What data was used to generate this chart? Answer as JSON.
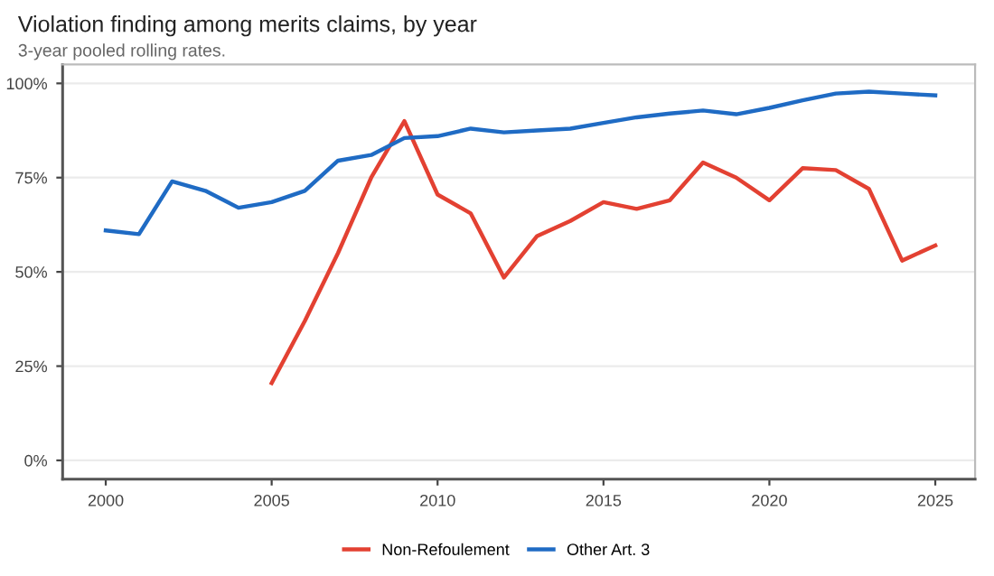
{
  "chart_data": {
    "type": "line",
    "title": "Violation finding among merits claims, by year",
    "subtitle": "3-year pooled rolling rates.",
    "x": [
      2000,
      2001,
      2002,
      2003,
      2004,
      2005,
      2006,
      2007,
      2008,
      2009,
      2010,
      2011,
      2012,
      2013,
      2014,
      2015,
      2016,
      2017,
      2018,
      2019,
      2020,
      2021,
      2022,
      2023,
      2024,
      2025
    ],
    "series": [
      {
        "name": "Non-Refoulement",
        "color": "#e34132",
        "values": [
          null,
          null,
          null,
          null,
          null,
          20.5,
          37,
          55,
          75,
          90,
          70.5,
          65.5,
          48.5,
          59.5,
          63.5,
          68.5,
          66.7,
          69,
          79,
          75,
          69,
          77.5,
          77,
          72,
          53,
          57
        ]
      },
      {
        "name": "Other Art. 3",
        "color": "#1f6bc4",
        "values": [
          61,
          60,
          74,
          71.5,
          67,
          68.5,
          71.5,
          79.5,
          81,
          85.5,
          86,
          88,
          87,
          87.5,
          88,
          89.5,
          91,
          92,
          92.8,
          91.8,
          93.5,
          95.5,
          97.3,
          97.8,
          97.3,
          96.8
        ]
      }
    ],
    "xlim": [
      1998.7,
      2026.2
    ],
    "xticks": [
      2000,
      2005,
      2010,
      2015,
      2020,
      2025
    ],
    "ylim": [
      -5,
      105
    ],
    "yticks": [
      {
        "value": 0,
        "label": "0%"
      },
      {
        "value": 25,
        "label": "25%"
      },
      {
        "value": 50,
        "label": "50%"
      },
      {
        "value": 75,
        "label": "75%"
      },
      {
        "value": 100,
        "label": "100%"
      }
    ],
    "grid": "y",
    "legend": "bottom",
    "marker": "none",
    "line_style": "solid"
  }
}
